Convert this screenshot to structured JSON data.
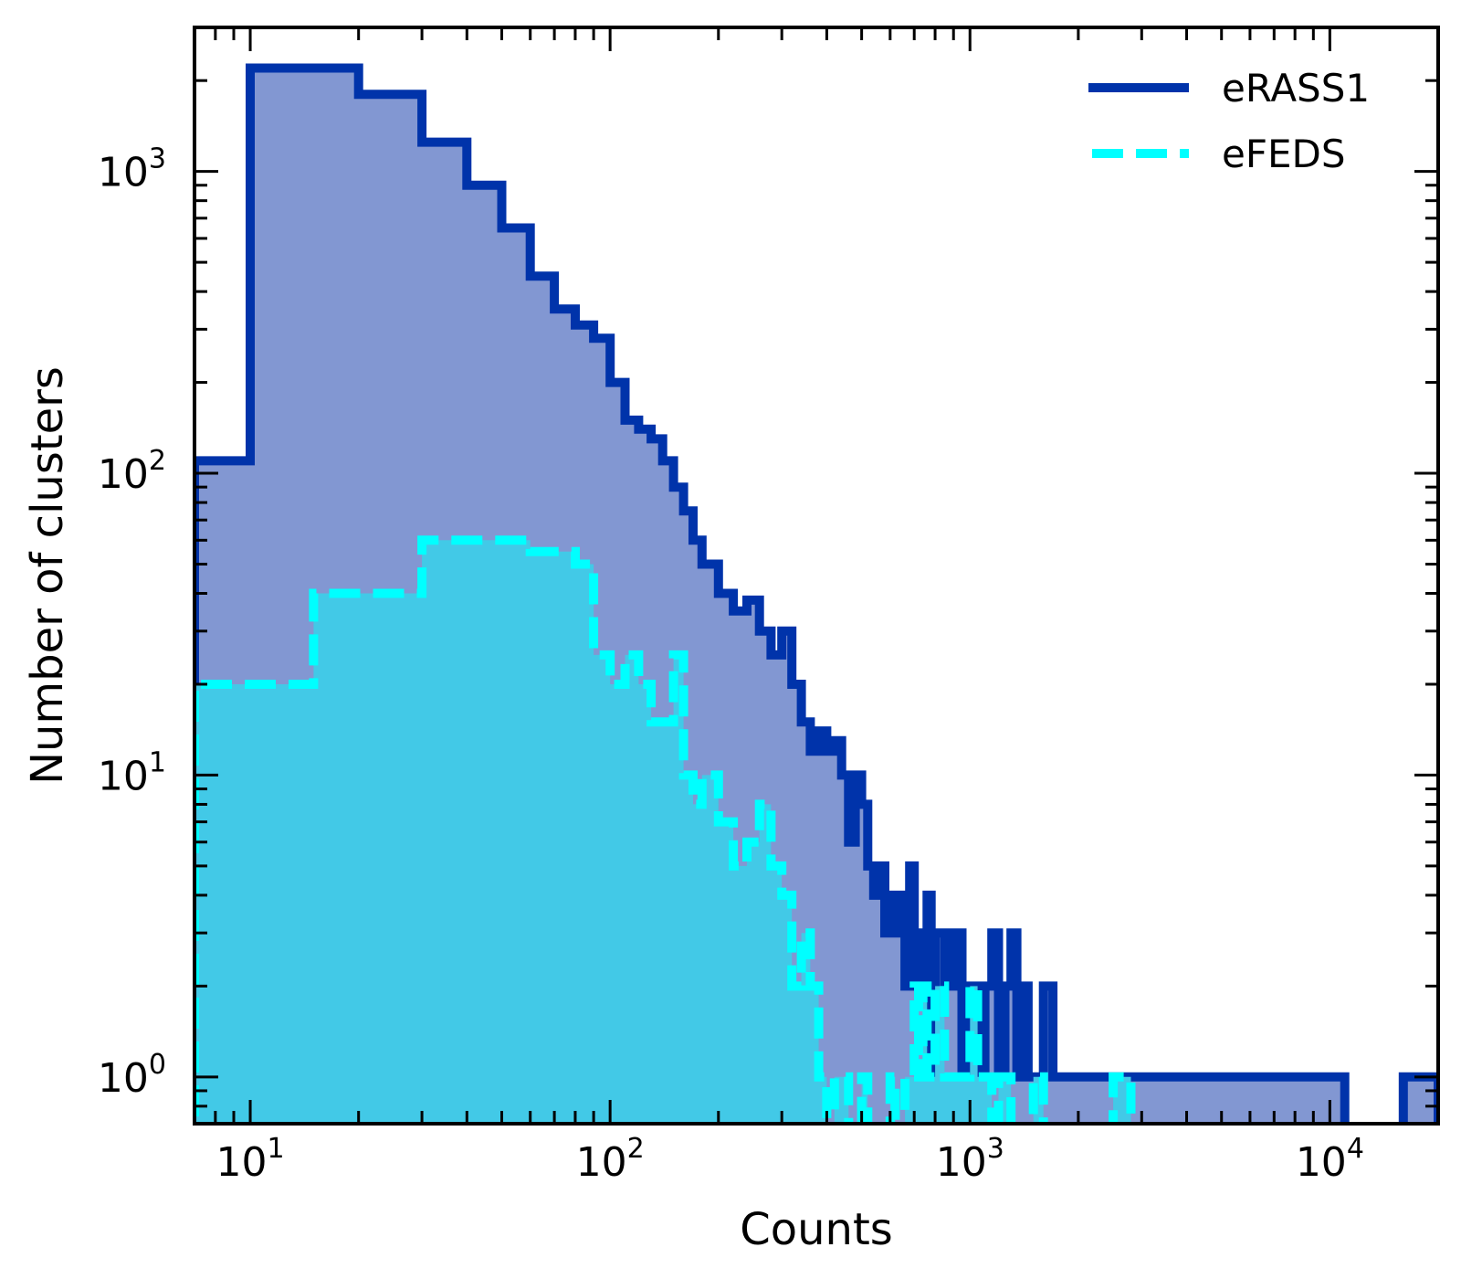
{
  "chart_data": {
    "type": "histogram",
    "xlabel": "Counts",
    "ylabel": "Number of clusters",
    "xscale": "log",
    "yscale": "log",
    "xlim": [
      7,
      20000
    ],
    "ylim": [
      0.7,
      3000
    ],
    "x_tick_labels": [
      {
        "value": 10,
        "base": "10",
        "exp": "1"
      },
      {
        "value": 100,
        "base": "10",
        "exp": "2"
      },
      {
        "value": 1000,
        "base": "10",
        "exp": "3"
      },
      {
        "value": 10000,
        "base": "10",
        "exp": "4"
      }
    ],
    "y_tick_labels": [
      {
        "value": 1,
        "base": "10",
        "exp": "0"
      },
      {
        "value": 10,
        "base": "10",
        "exp": "1"
      },
      {
        "value": 100,
        "base": "10",
        "exp": "2"
      },
      {
        "value": 1000,
        "base": "10",
        "exp": "3"
      }
    ],
    "legend": {
      "position": "upper-right"
    },
    "series": [
      {
        "name": "eRASS1",
        "color": "#0033aa",
        "fill": "#8297d2",
        "linestyle": "solid",
        "edges": [
          7,
          10,
          20,
          30,
          40,
          50,
          60,
          70,
          80,
          90,
          100,
          110,
          120,
          130,
          140,
          150,
          160,
          170,
          180,
          200,
          220,
          240,
          260,
          280,
          300,
          320,
          340,
          360,
          380,
          400,
          420,
          440,
          460,
          480,
          500,
          520,
          540,
          560,
          580,
          600,
          620,
          640,
          660,
          680,
          700,
          720,
          740,
          760,
          780,
          800,
          850,
          900,
          950,
          1000,
          1050,
          1100,
          1150,
          1200,
          1250,
          1300,
          1350,
          1400,
          1450,
          1500,
          1600,
          1700,
          1800,
          1900,
          2000,
          2100,
          2200,
          2300,
          2500,
          2700,
          2900,
          3100,
          3300,
          3500,
          3700,
          3900,
          4100,
          4300,
          4500,
          4700,
          5000,
          5500,
          6000,
          6500,
          7000,
          7500,
          8000,
          9000,
          10000,
          11000,
          16000,
          17000,
          20000
        ],
        "values": [
          110,
          2200,
          1800,
          1250,
          900,
          650,
          450,
          350,
          310,
          280,
          200,
          150,
          140,
          130,
          110,
          90,
          75,
          60,
          50,
          40,
          35,
          38,
          30,
          25,
          30,
          20,
          15,
          12,
          14,
          12,
          13,
          10,
          6,
          10,
          8,
          5,
          4,
          5,
          3,
          4,
          3,
          4,
          2,
          5,
          2,
          3,
          2,
          4,
          1,
          3,
          2,
          3,
          1,
          2,
          1,
          2,
          3,
          1,
          2,
          3,
          1,
          2,
          1,
          1,
          2,
          1,
          1,
          1,
          1,
          1,
          1,
          1,
          1,
          1,
          1,
          1,
          1,
          1,
          1,
          1,
          1,
          1,
          1,
          1,
          1,
          1,
          1,
          1,
          1,
          1,
          1,
          1,
          1,
          0,
          1,
          1
        ]
      },
      {
        "name": "eFEDS",
        "color": "#00ffff",
        "fill": "#42c9e7",
        "linestyle": "dashed",
        "edges": [
          7,
          15,
          30,
          50,
          60,
          80,
          90,
          100,
          110,
          120,
          130,
          150,
          160,
          170,
          180,
          200,
          220,
          240,
          260,
          280,
          300,
          320,
          340,
          360,
          380,
          400,
          420,
          440,
          460,
          480,
          500,
          520,
          540,
          560,
          580,
          600,
          620,
          640,
          660,
          680,
          700,
          720,
          740,
          760,
          780,
          800,
          850,
          900,
          950,
          1000,
          1050,
          1100,
          1150,
          1200,
          1300,
          1400,
          1500,
          1600,
          1800,
          2000,
          2500,
          2800
        ],
        "values": [
          20,
          40,
          60,
          60,
          55,
          50,
          25,
          20,
          25,
          20,
          15,
          25,
          10,
          8,
          10,
          7,
          5,
          6,
          8,
          5,
          4,
          2,
          3,
          2,
          1,
          0,
          1,
          1,
          0,
          0,
          1,
          0,
          0,
          0,
          0,
          1,
          0,
          0,
          1,
          1,
          2,
          1,
          2,
          1,
          1,
          2,
          1,
          1,
          1,
          2,
          1,
          1,
          0,
          1,
          0,
          0,
          1,
          0,
          0,
          0,
          1
        ]
      }
    ]
  }
}
